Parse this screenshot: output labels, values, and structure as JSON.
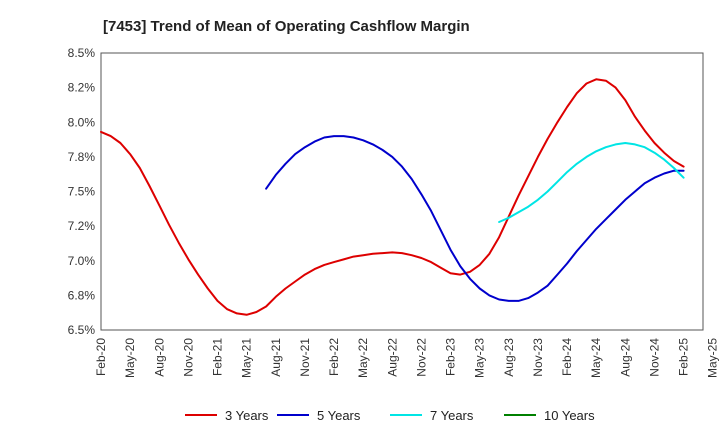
{
  "chart_data": {
    "type": "line",
    "title": "[7453]  Trend of Mean of Operating Cashflow Margin",
    "xlabel": "",
    "ylabel": "",
    "ylim": [
      6.5,
      8.5
    ],
    "yticks": [
      6.5,
      6.75,
      7.0,
      7.25,
      7.5,
      7.75,
      8.0,
      8.25,
      8.5
    ],
    "ytick_labels": [
      "6.5%",
      "6.8%",
      "7.0%",
      "7.2%",
      "7.5%",
      "7.8%",
      "8.0%",
      "8.2%",
      "8.5%"
    ],
    "x_tick_labels": [
      "Feb-20",
      "May-20",
      "Aug-20",
      "Nov-20",
      "Feb-21",
      "May-21",
      "Aug-21",
      "Nov-21",
      "Feb-22",
      "May-22",
      "Aug-22",
      "Nov-22",
      "Feb-23",
      "May-23",
      "Aug-23",
      "Nov-23",
      "Feb-24",
      "May-24",
      "Aug-24",
      "Nov-24",
      "Feb-25",
      "May-25"
    ],
    "grid": true,
    "legend_position": "bottom",
    "series": [
      {
        "name": "3 Years",
        "color": "#dd0000",
        "x": [
          "Feb-20",
          "Mar-20",
          "Apr-20",
          "May-20",
          "Jun-20",
          "Jul-20",
          "Aug-20",
          "Sep-20",
          "Oct-20",
          "Nov-20",
          "Dec-20",
          "Jan-21",
          "Feb-21",
          "Mar-21",
          "Apr-21",
          "May-21",
          "Jun-21",
          "Jul-21",
          "Aug-21",
          "Sep-21",
          "Oct-21",
          "Nov-21",
          "Dec-21",
          "Jan-22",
          "Feb-22",
          "Mar-22",
          "Apr-22",
          "May-22",
          "Jun-22",
          "Jul-22",
          "Aug-22",
          "Sep-22",
          "Oct-22",
          "Nov-22",
          "Dec-22",
          "Jan-23",
          "Feb-23",
          "Mar-23",
          "Apr-23",
          "May-23",
          "Jun-23",
          "Jul-23",
          "Aug-23",
          "Sep-23",
          "Oct-23",
          "Nov-23",
          "Dec-23",
          "Jan-24",
          "Feb-24",
          "Mar-24",
          "Apr-24",
          "May-24",
          "Jun-24",
          "Jul-24",
          "Aug-24",
          "Sep-24",
          "Oct-24",
          "Nov-24",
          "Dec-24",
          "Jan-25",
          "Feb-25"
        ],
        "values": [
          7.93,
          7.9,
          7.85,
          7.77,
          7.67,
          7.54,
          7.4,
          7.26,
          7.13,
          7.01,
          6.9,
          6.8,
          6.71,
          6.65,
          6.62,
          6.61,
          6.63,
          6.67,
          6.74,
          6.8,
          6.85,
          6.9,
          6.94,
          6.97,
          6.99,
          7.01,
          7.03,
          7.04,
          7.05,
          7.055,
          7.06,
          7.055,
          7.04,
          7.02,
          6.99,
          6.95,
          6.91,
          6.9,
          6.92,
          6.97,
          7.05,
          7.17,
          7.32,
          7.47,
          7.61,
          7.75,
          7.88,
          8.0,
          8.11,
          8.21,
          8.28,
          8.31,
          8.3,
          8.25,
          8.16,
          8.04,
          7.94,
          7.85,
          7.78,
          7.72,
          7.68
        ]
      },
      {
        "name": "5 Years",
        "color": "#0000cc",
        "x": [
          "Jul-21",
          "Aug-21",
          "Sep-21",
          "Oct-21",
          "Nov-21",
          "Dec-21",
          "Jan-22",
          "Feb-22",
          "Mar-22",
          "Apr-22",
          "May-22",
          "Jun-22",
          "Jul-22",
          "Aug-22",
          "Sep-22",
          "Oct-22",
          "Nov-22",
          "Dec-22",
          "Jan-23",
          "Feb-23",
          "Mar-23",
          "Apr-23",
          "May-23",
          "Jun-23",
          "Jul-23",
          "Aug-23",
          "Sep-23",
          "Oct-23",
          "Nov-23",
          "Dec-23",
          "Jan-24",
          "Feb-24",
          "Mar-24",
          "Apr-24",
          "May-24",
          "Jun-24",
          "Jul-24",
          "Aug-24",
          "Sep-24",
          "Oct-24",
          "Nov-24",
          "Dec-24",
          "Jan-25",
          "Feb-25"
        ],
        "values": [
          7.52,
          7.62,
          7.7,
          7.77,
          7.82,
          7.86,
          7.89,
          7.9,
          7.9,
          7.89,
          7.87,
          7.84,
          7.8,
          7.75,
          7.68,
          7.59,
          7.48,
          7.36,
          7.22,
          7.08,
          6.96,
          6.87,
          6.8,
          6.75,
          6.72,
          6.71,
          6.71,
          6.73,
          6.77,
          6.82,
          6.9,
          6.98,
          7.07,
          7.15,
          7.23,
          7.3,
          7.37,
          7.44,
          7.5,
          7.56,
          7.6,
          7.63,
          7.65,
          7.65
        ]
      },
      {
        "name": "7 Years",
        "color": "#00e5e5",
        "x": [
          "Jul-23",
          "Aug-23",
          "Sep-23",
          "Oct-23",
          "Nov-23",
          "Dec-23",
          "Jan-24",
          "Feb-24",
          "Mar-24",
          "Apr-24",
          "May-24",
          "Jun-24",
          "Jul-24",
          "Aug-24",
          "Sep-24",
          "Oct-24",
          "Nov-24",
          "Dec-24",
          "Jan-25",
          "Feb-25"
        ],
        "values": [
          7.28,
          7.31,
          7.35,
          7.39,
          7.44,
          7.5,
          7.57,
          7.64,
          7.7,
          7.75,
          7.79,
          7.82,
          7.84,
          7.85,
          7.84,
          7.82,
          7.78,
          7.73,
          7.67,
          7.6
        ]
      },
      {
        "name": "10 Years",
        "color": "#008000",
        "x": [],
        "values": []
      }
    ]
  }
}
